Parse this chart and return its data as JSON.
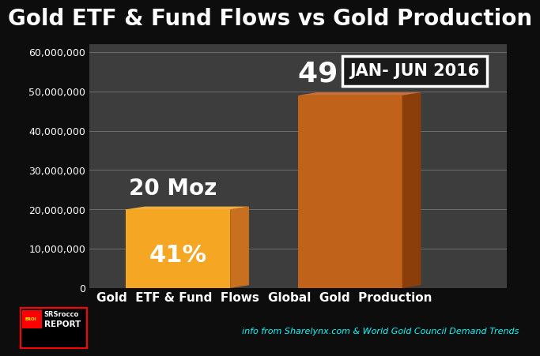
{
  "title": "Gold ETF & Fund Flows vs Gold Production",
  "cat1": "Gold  ETF & Fund  Flows",
  "cat2": "Global  Gold  Production",
  "values": [
    20000000,
    49000000
  ],
  "bar1_face_color": "#F5A623",
  "bar1_side_color": "#C87020",
  "bar1_top_color": "#F0B040",
  "bar2_face_color": "#C0621A",
  "bar2_side_color": "#8B3E0A",
  "bar2_top_color": "#D07030",
  "ylim": [
    0,
    62000000
  ],
  "yticks": [
    0,
    10000000,
    20000000,
    30000000,
    40000000,
    50000000,
    60000000
  ],
  "annotation_label": "JAN- JUN 2016",
  "bar1_top_label": "20 Moz",
  "bar1_inner_label": "41%",
  "bar2_top_label": "49 Moz",
  "footer_right": "info from Sharelynx.com & World Gold Council Demand Trends",
  "background_color": "#0D0D0D",
  "plot_bg_color": "#3D3D3D",
  "grid_color": "#AAAAAA",
  "text_color": "#FFFFFF",
  "title_fontsize": 20,
  "ytick_fontsize": 9,
  "xtick_fontsize": 11,
  "bar_label_fontsize_sm": 20,
  "bar_label_fontsize_lg": 26,
  "pct_fontsize": 22,
  "annotation_fontsize": 15,
  "footer_fontsize": 8
}
